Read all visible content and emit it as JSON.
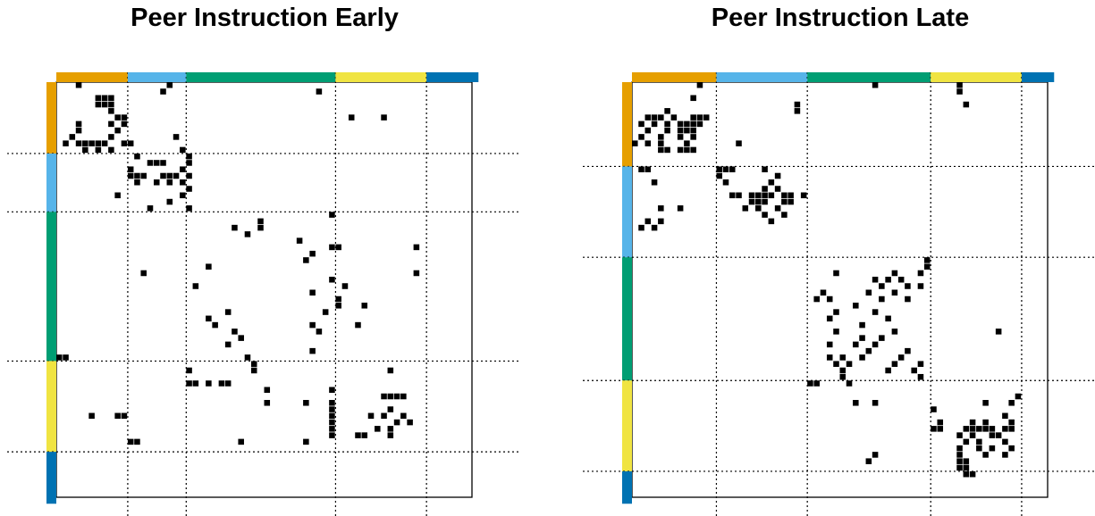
{
  "colors": {
    "orange": "#E69F00",
    "skyblue": "#56B4E9",
    "green": "#009E73",
    "yellow": "#F0E442",
    "blue": "#0072B2",
    "cell": "#000000",
    "frame": "#000000"
  },
  "chart_data": [
    {
      "type": "heatmap",
      "title": "Peer Instruction Early",
      "n": 64,
      "groups": [
        {
          "color": "orange",
          "size": 11
        },
        {
          "color": "skyblue",
          "size": 9
        },
        {
          "color": "green",
          "size": 23
        },
        {
          "color": "yellow",
          "size": 14
        },
        {
          "color": "blue",
          "size": 8
        }
      ],
      "cells": [
        [
          0,
          3
        ],
        [
          0,
          17
        ],
        [
          1,
          16
        ],
        [
          1,
          40
        ],
        [
          2,
          6
        ],
        [
          2,
          7
        ],
        [
          2,
          8
        ],
        [
          3,
          6
        ],
        [
          3,
          7
        ],
        [
          3,
          8
        ],
        [
          4,
          8
        ],
        [
          5,
          9
        ],
        [
          5,
          45
        ],
        [
          5,
          50
        ],
        [
          5,
          10
        ],
        [
          6,
          3
        ],
        [
          6,
          8
        ],
        [
          6,
          10
        ],
        [
          7,
          3
        ],
        [
          7,
          9
        ],
        [
          8,
          2
        ],
        [
          8,
          8
        ],
        [
          8,
          18
        ],
        [
          9,
          1
        ],
        [
          9,
          3
        ],
        [
          9,
          4
        ],
        [
          9,
          5
        ],
        [
          9,
          6
        ],
        [
          9,
          7
        ],
        [
          9,
          10
        ],
        [
          9,
          11
        ],
        [
          10,
          8
        ],
        [
          10,
          4
        ],
        [
          10,
          6
        ],
        [
          10,
          19
        ],
        [
          11,
          12
        ],
        [
          11,
          20
        ],
        [
          12,
          14
        ],
        [
          12,
          15
        ],
        [
          12,
          16
        ],
        [
          12,
          20
        ],
        [
          13,
          11
        ],
        [
          13,
          19
        ],
        [
          14,
          11
        ],
        [
          14,
          12
        ],
        [
          14,
          13
        ],
        [
          14,
          16
        ],
        [
          14,
          17
        ],
        [
          14,
          18
        ],
        [
          14,
          20
        ],
        [
          15,
          12
        ],
        [
          15,
          15
        ],
        [
          15,
          17
        ],
        [
          15,
          19
        ],
        [
          16,
          20
        ],
        [
          17,
          9
        ],
        [
          17,
          19
        ],
        [
          18,
          17
        ],
        [
          19,
          14
        ],
        [
          19,
          20
        ],
        [
          20,
          42
        ],
        [
          21,
          31
        ],
        [
          22,
          27
        ],
        [
          22,
          31
        ],
        [
          23,
          29
        ],
        [
          24,
          37
        ],
        [
          25,
          42
        ],
        [
          25,
          43
        ],
        [
          25,
          55
        ],
        [
          26,
          39
        ],
        [
          27,
          38
        ],
        [
          28,
          23
        ],
        [
          29,
          13
        ],
        [
          29,
          55
        ],
        [
          30,
          42
        ],
        [
          31,
          21
        ],
        [
          31,
          44
        ],
        [
          32,
          39
        ],
        [
          33,
          43
        ],
        [
          34,
          43
        ],
        [
          34,
          47
        ],
        [
          35,
          26
        ],
        [
          35,
          41
        ],
        [
          36,
          23
        ],
        [
          37,
          24
        ],
        [
          37,
          39
        ],
        [
          37,
          46
        ],
        [
          38,
          27
        ],
        [
          38,
          40
        ],
        [
          39,
          28
        ],
        [
          40,
          26
        ],
        [
          41,
          39
        ],
        [
          42,
          0
        ],
        [
          42,
          1
        ],
        [
          42,
          29
        ],
        [
          43,
          30
        ],
        [
          44,
          30
        ],
        [
          44,
          20
        ],
        [
          44,
          51
        ],
        [
          46,
          20
        ],
        [
          46,
          21
        ],
        [
          46,
          23
        ],
        [
          46,
          25
        ],
        [
          46,
          26
        ],
        [
          47,
          32
        ],
        [
          47,
          42
        ],
        [
          48,
          50
        ],
        [
          48,
          51
        ],
        [
          48,
          52
        ],
        [
          48,
          53
        ],
        [
          49,
          32
        ],
        [
          49,
          38
        ],
        [
          49,
          42
        ],
        [
          50,
          42
        ],
        [
          50,
          51
        ],
        [
          51,
          5
        ],
        [
          51,
          9
        ],
        [
          51,
          10
        ],
        [
          51,
          42
        ],
        [
          51,
          48
        ],
        [
          51,
          50
        ],
        [
          51,
          53
        ],
        [
          52,
          42
        ],
        [
          52,
          52
        ],
        [
          52,
          54
        ],
        [
          53,
          42
        ],
        [
          53,
          49
        ],
        [
          53,
          51
        ],
        [
          54,
          42
        ],
        [
          54,
          46
        ],
        [
          54,
          47
        ],
        [
          54,
          51
        ],
        [
          55,
          11
        ],
        [
          55,
          12
        ],
        [
          55,
          28
        ],
        [
          55,
          38
        ]
      ]
    },
    {
      "type": "heatmap",
      "title": "Peer Instruction Late",
      "n": 64,
      "groups": [
        {
          "color": "orange",
          "size": 13
        },
        {
          "color": "skyblue",
          "size": 14
        },
        {
          "color": "green",
          "size": 19
        },
        {
          "color": "yellow",
          "size": 14
        },
        {
          "color": "blue",
          "size": 5
        }
      ],
      "cells": [
        [
          0,
          10
        ],
        [
          0,
          37
        ],
        [
          0,
          50
        ],
        [
          1,
          50
        ],
        [
          2,
          9
        ],
        [
          3,
          25
        ],
        [
          3,
          51
        ],
        [
          4,
          5
        ],
        [
          4,
          25
        ],
        [
          5,
          2
        ],
        [
          5,
          3
        ],
        [
          5,
          4
        ],
        [
          5,
          6
        ],
        [
          5,
          10
        ],
        [
          5,
          11
        ],
        [
          5,
          9
        ],
        [
          6,
          1
        ],
        [
          6,
          3
        ],
        [
          6,
          5
        ],
        [
          6,
          7
        ],
        [
          6,
          8
        ],
        [
          6,
          9
        ],
        [
          6,
          10
        ],
        [
          7,
          2
        ],
        [
          7,
          5
        ],
        [
          7,
          7
        ],
        [
          7,
          8
        ],
        [
          7,
          9
        ],
        [
          8,
          1
        ],
        [
          8,
          4
        ],
        [
          8,
          7
        ],
        [
          8,
          9
        ],
        [
          9,
          0
        ],
        [
          9,
          2
        ],
        [
          9,
          4
        ],
        [
          9,
          8
        ],
        [
          9,
          16
        ],
        [
          10,
          4
        ],
        [
          10,
          5
        ],
        [
          10,
          7
        ],
        [
          10,
          8
        ],
        [
          10,
          9
        ],
        [
          13,
          1
        ],
        [
          13,
          2
        ],
        [
          13,
          13
        ],
        [
          13,
          14
        ],
        [
          13,
          15
        ],
        [
          13,
          20
        ],
        [
          14,
          13
        ],
        [
          14,
          22
        ],
        [
          15,
          3
        ],
        [
          15,
          14
        ],
        [
          15,
          21
        ],
        [
          16,
          20
        ],
        [
          16,
          22
        ],
        [
          17,
          15
        ],
        [
          17,
          16
        ],
        [
          17,
          18
        ],
        [
          17,
          19
        ],
        [
          17,
          20
        ],
        [
          17,
          21
        ],
        [
          17,
          23
        ],
        [
          17,
          24
        ],
        [
          17,
          26
        ],
        [
          18,
          18
        ],
        [
          18,
          19
        ],
        [
          18,
          20
        ],
        [
          18,
          23
        ],
        [
          18,
          24
        ],
        [
          19,
          4
        ],
        [
          19,
          7
        ],
        [
          19,
          17
        ],
        [
          19,
          19
        ],
        [
          19,
          22
        ],
        [
          20,
          20
        ],
        [
          20,
          23
        ],
        [
          21,
          2
        ],
        [
          21,
          4
        ],
        [
          21,
          21
        ],
        [
          22,
          1
        ],
        [
          22,
          3
        ],
        [
          27,
          45
        ],
        [
          28,
          45
        ],
        [
          29,
          31
        ],
        [
          29,
          40
        ],
        [
          29,
          44
        ],
        [
          30,
          37
        ],
        [
          30,
          39
        ],
        [
          30,
          41
        ],
        [
          31,
          38
        ],
        [
          31,
          42
        ],
        [
          31,
          44
        ],
        [
          32,
          29
        ],
        [
          32,
          36
        ],
        [
          32,
          40
        ],
        [
          33,
          28
        ],
        [
          33,
          30
        ],
        [
          33,
          38
        ],
        [
          33,
          42
        ],
        [
          34,
          34
        ],
        [
          35,
          31
        ],
        [
          35,
          37
        ],
        [
          36,
          30
        ],
        [
          36,
          39
        ],
        [
          37,
          35
        ],
        [
          38,
          31
        ],
        [
          38,
          40
        ],
        [
          38,
          56
        ],
        [
          39,
          35
        ],
        [
          39,
          38
        ],
        [
          40,
          30
        ],
        [
          40,
          34
        ],
        [
          40,
          37
        ],
        [
          41,
          36
        ],
        [
          41,
          42
        ],
        [
          42,
          30
        ],
        [
          42,
          32
        ],
        [
          42,
          35
        ],
        [
          42,
          41
        ],
        [
          43,
          31
        ],
        [
          43,
          33
        ],
        [
          43,
          40
        ],
        [
          43,
          44
        ],
        [
          44,
          32
        ],
        [
          44,
          39
        ],
        [
          44,
          43
        ],
        [
          45,
          32
        ],
        [
          45,
          44
        ],
        [
          46,
          27
        ],
        [
          46,
          28
        ],
        [
          46,
          33
        ],
        [
          48,
          59
        ],
        [
          49,
          54
        ],
        [
          49,
          58
        ],
        [
          49,
          34
        ],
        [
          49,
          37
        ],
        [
          50,
          46
        ],
        [
          51,
          57
        ],
        [
          52,
          47
        ],
        [
          52,
          52
        ],
        [
          52,
          58
        ],
        [
          52,
          54
        ],
        [
          53,
          46
        ],
        [
          53,
          47
        ],
        [
          53,
          51
        ],
        [
          53,
          52
        ],
        [
          53,
          53
        ],
        [
          53,
          54
        ],
        [
          53,
          55
        ],
        [
          53,
          57
        ],
        [
          53,
          58
        ],
        [
          54,
          50
        ],
        [
          54,
          52
        ],
        [
          54,
          55
        ],
        [
          54,
          56
        ],
        [
          55,
          51
        ],
        [
          55,
          53
        ],
        [
          55,
          57
        ],
        [
          56,
          50
        ],
        [
          56,
          53
        ],
        [
          56,
          55
        ],
        [
          56,
          58
        ],
        [
          57,
          37
        ],
        [
          57,
          50
        ],
        [
          57,
          54
        ],
        [
          57,
          57
        ],
        [
          58,
          36
        ],
        [
          58,
          50
        ],
        [
          58,
          51
        ],
        [
          59,
          50
        ],
        [
          59,
          51
        ],
        [
          59,
          51
        ],
        [
          60,
          51
        ],
        [
          60,
          52
        ]
      ]
    }
  ]
}
